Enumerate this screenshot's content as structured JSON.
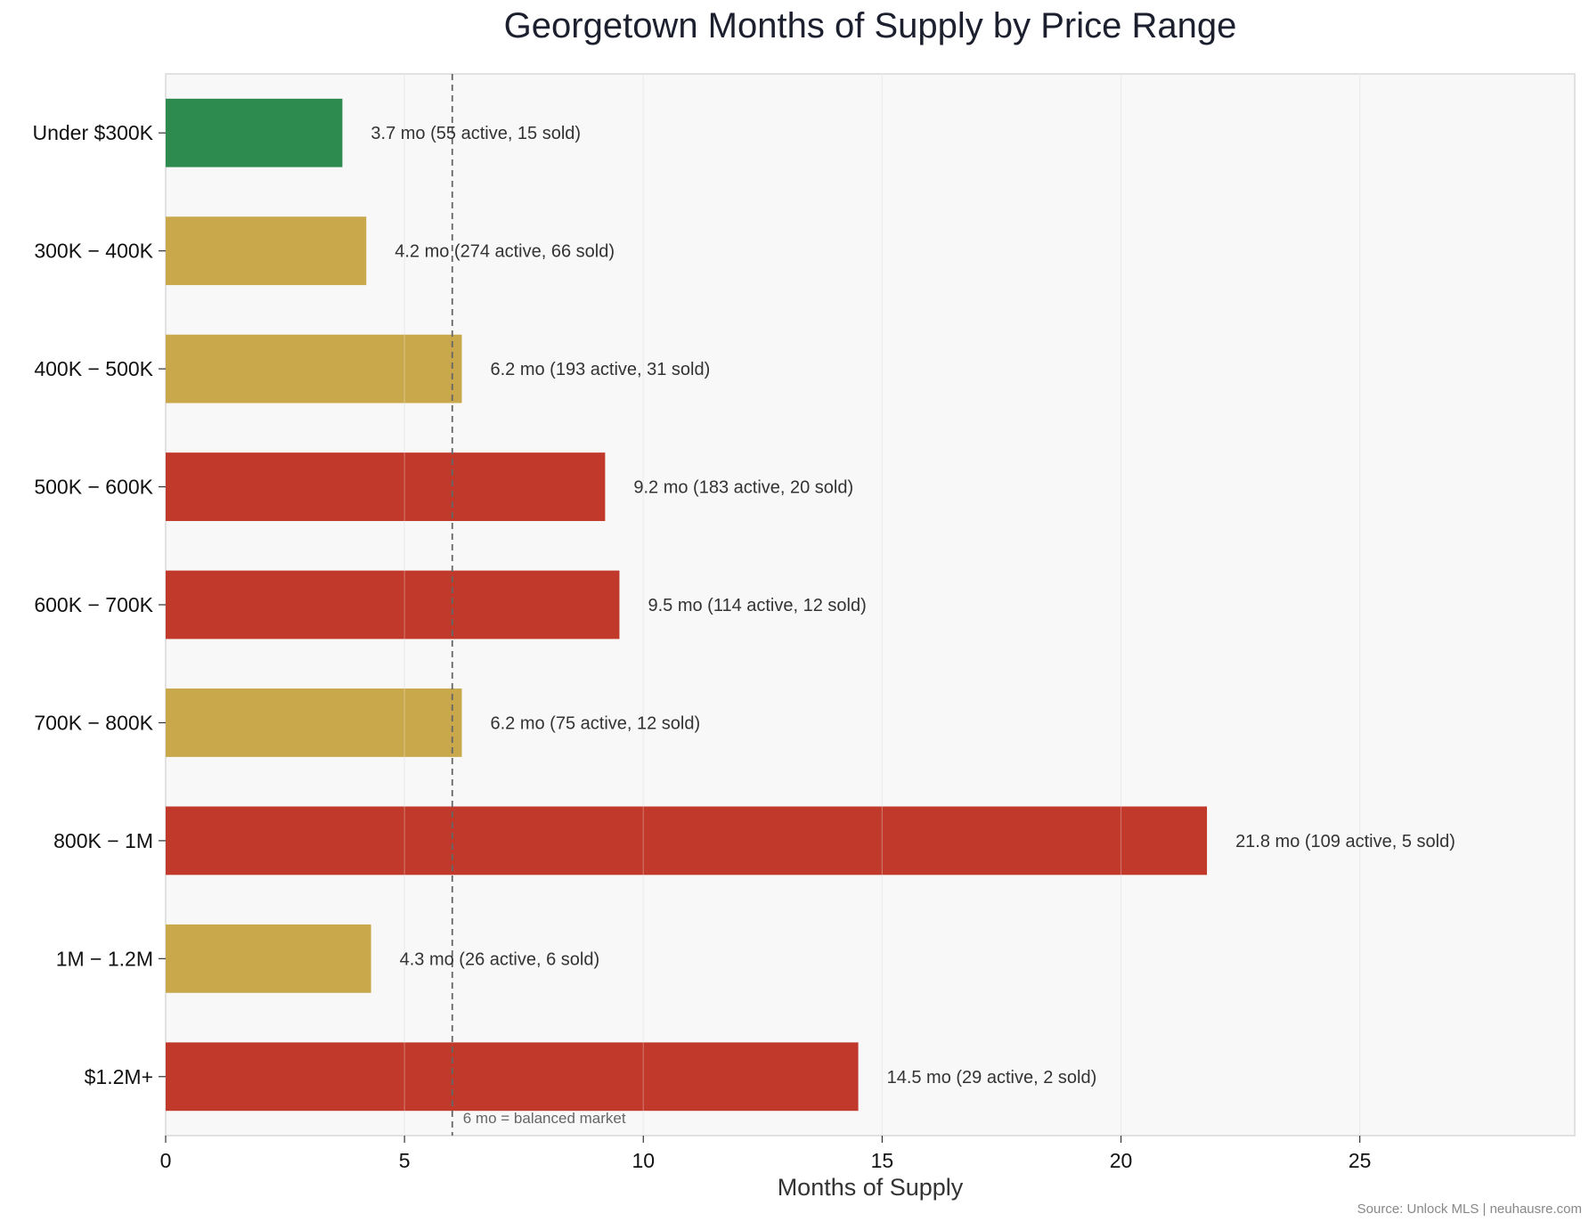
{
  "chart_data": {
    "type": "bar",
    "orientation": "horizontal",
    "title": "Georgetown Months of Supply by Price Range",
    "xlabel": "Months of Supply",
    "ylabel": "",
    "xlim": [
      0,
      29.5
    ],
    "xticks": [
      0,
      5,
      10,
      15,
      20,
      25
    ],
    "grid": true,
    "categories": [
      "Under $300K",
      "300K − 400K",
      "400K − 500K",
      "500K − 600K",
      "600K − 700K",
      "700K − 800K",
      "800K − 1M",
      "1M − 1.2M",
      "$1.2M+"
    ],
    "values": [
      3.7,
      4.2,
      6.2,
      9.2,
      9.5,
      6.2,
      21.8,
      4.3,
      14.5
    ],
    "data_labels": [
      "3.7 mo  (55 active, 15 sold)",
      "4.2 mo  (274 active, 66 sold)",
      "6.2 mo  (193 active, 31 sold)",
      "9.2 mo  (183 active, 20 sold)",
      "9.5 mo  (114 active, 12 sold)",
      "6.2 mo  (75 active, 12 sold)",
      "21.8 mo  (109 active, 5 sold)",
      "4.3 mo  (26 active, 6 sold)",
      "14.5 mo  (29 active, 2 sold)"
    ],
    "bar_colors": [
      "#2e8b4f",
      "#c9a84c",
      "#c9a84c",
      "#c0392b",
      "#c0392b",
      "#c9a84c",
      "#c0392b",
      "#c9a84c",
      "#c0392b"
    ],
    "reference_line": {
      "x": 6,
      "label": "6 mo = balanced market",
      "style": "dashed"
    },
    "source": "Source: Unlock MLS | neuhausre.com"
  },
  "colors": {
    "plot_background": "#f8f8f8",
    "grid": "#e6e6e6",
    "reference_line": "#666666"
  }
}
